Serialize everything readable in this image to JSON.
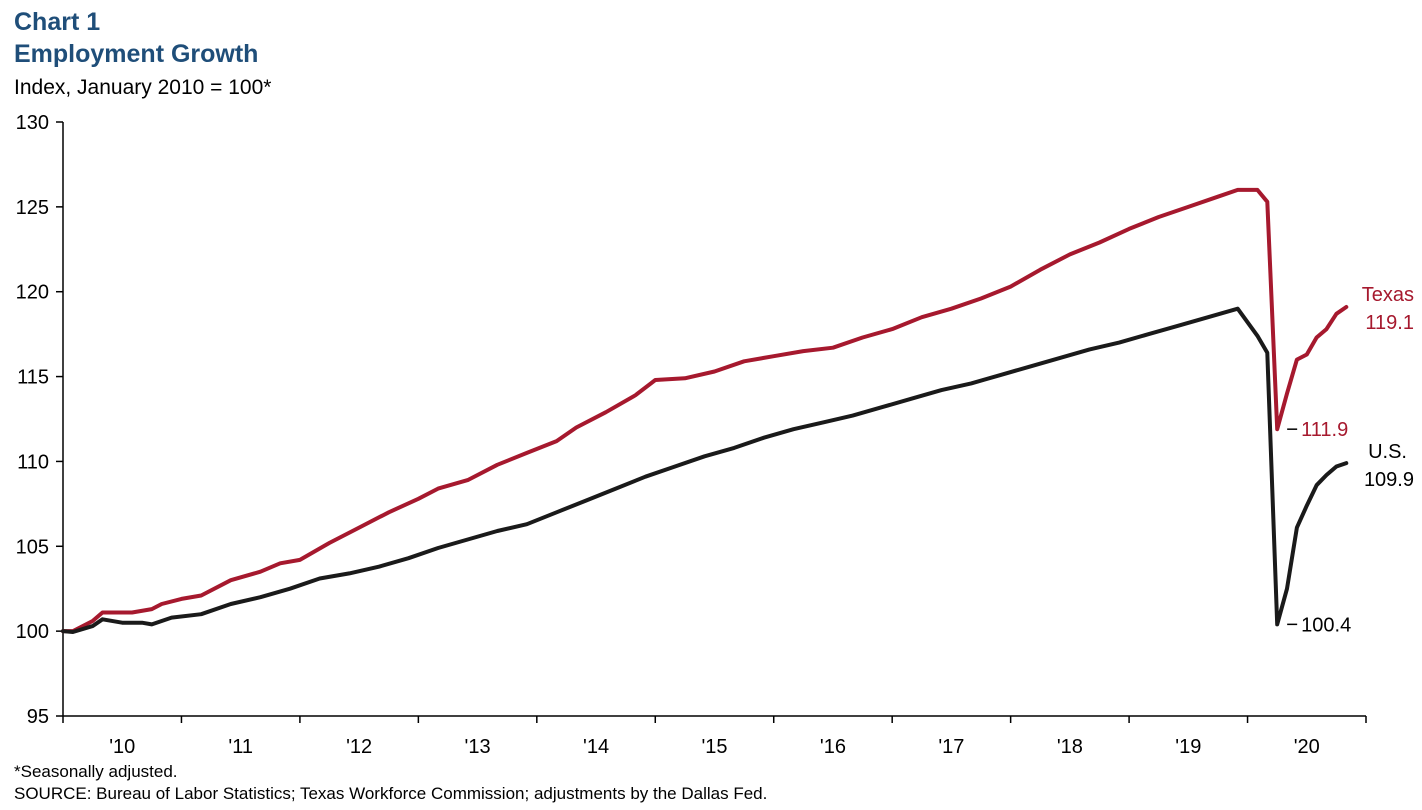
{
  "header": {
    "chart_label": "Chart 1",
    "title": "Employment Growth",
    "subtitle": "Index, January 2010 = 100*"
  },
  "footnotes": {
    "note": "*Seasonally adjusted.",
    "source": "SOURCE:  Bureau  of Labor Statistics; Texas Workforce Commission;  adjustments  by the Dallas Fed."
  },
  "colors": {
    "texas": "#a6192e",
    "us": "#1a1a1a",
    "title": "#1f4e79"
  },
  "chart_data": {
    "type": "line",
    "title": "Employment Growth",
    "subtitle": "Index, January 2010 = 100*",
    "ylim": [
      95,
      130
    ],
    "yticks": [
      95,
      100,
      105,
      110,
      115,
      120,
      125,
      130
    ],
    "xlim": [
      "2010-01",
      "2020-12"
    ],
    "xtick_labels": [
      "'10",
      "'11",
      "'12",
      "'13",
      "'14",
      "'15",
      "'16",
      "'17",
      "'18",
      "'19",
      "'20"
    ],
    "grid": false,
    "series": [
      {
        "name": "Texas",
        "color": "#a6192e",
        "end_value_label": "119.1",
        "points": [
          [
            "2010-01",
            100.0
          ],
          [
            "2010-02",
            100.0
          ],
          [
            "2010-04",
            100.6
          ],
          [
            "2010-05",
            101.1
          ],
          [
            "2010-08",
            101.1
          ],
          [
            "2010-10",
            101.3
          ],
          [
            "2010-11",
            101.6
          ],
          [
            "2011-01",
            101.9
          ],
          [
            "2011-03",
            102.1
          ],
          [
            "2011-06",
            103.0
          ],
          [
            "2011-09",
            103.5
          ],
          [
            "2011-11",
            104.0
          ],
          [
            "2012-01",
            104.2
          ],
          [
            "2012-04",
            105.2
          ],
          [
            "2012-07",
            106.1
          ],
          [
            "2012-10",
            107.0
          ],
          [
            "2013-01",
            107.8
          ],
          [
            "2013-03",
            108.4
          ],
          [
            "2013-06",
            108.9
          ],
          [
            "2013-09",
            109.8
          ],
          [
            "2013-12",
            110.5
          ],
          [
            "2014-03",
            111.2
          ],
          [
            "2014-05",
            112.0
          ],
          [
            "2014-08",
            112.9
          ],
          [
            "2014-11",
            113.9
          ],
          [
            "2015-01",
            114.8
          ],
          [
            "2015-04",
            114.9
          ],
          [
            "2015-07",
            115.3
          ],
          [
            "2015-10",
            115.9
          ],
          [
            "2016-01",
            116.2
          ],
          [
            "2016-04",
            116.5
          ],
          [
            "2016-07",
            116.7
          ],
          [
            "2016-10",
            117.3
          ],
          [
            "2017-01",
            117.8
          ],
          [
            "2017-04",
            118.5
          ],
          [
            "2017-07",
            119.0
          ],
          [
            "2017-10",
            119.6
          ],
          [
            "2018-01",
            120.3
          ],
          [
            "2018-04",
            121.3
          ],
          [
            "2018-07",
            122.2
          ],
          [
            "2018-10",
            122.9
          ],
          [
            "2019-01",
            123.7
          ],
          [
            "2019-04",
            124.4
          ],
          [
            "2019-07",
            125.0
          ],
          [
            "2019-10",
            125.6
          ],
          [
            "2019-12",
            126.0
          ],
          [
            "2020-02",
            126.0
          ],
          [
            "2020-03",
            125.3
          ],
          [
            "2020-04",
            111.9
          ],
          [
            "2020-05",
            114.0
          ],
          [
            "2020-06",
            116.0
          ],
          [
            "2020-07",
            116.3
          ],
          [
            "2020-08",
            117.3
          ],
          [
            "2020-09",
            117.8
          ],
          [
            "2020-10",
            118.7
          ],
          [
            "2020-11",
            119.1
          ]
        ]
      },
      {
        "name": "U.S.",
        "color": "#1a1a1a",
        "end_value_label": "109.9",
        "points": [
          [
            "2010-01",
            100.0
          ],
          [
            "2010-02",
            99.95
          ],
          [
            "2010-04",
            100.3
          ],
          [
            "2010-05",
            100.7
          ],
          [
            "2010-07",
            100.5
          ],
          [
            "2010-09",
            100.5
          ],
          [
            "2010-10",
            100.4
          ],
          [
            "2010-12",
            100.8
          ],
          [
            "2011-03",
            101.0
          ],
          [
            "2011-06",
            101.6
          ],
          [
            "2011-09",
            102.0
          ],
          [
            "2011-12",
            102.5
          ],
          [
            "2012-03",
            103.1
          ],
          [
            "2012-06",
            103.4
          ],
          [
            "2012-09",
            103.8
          ],
          [
            "2012-12",
            104.3
          ],
          [
            "2013-03",
            104.9
          ],
          [
            "2013-06",
            105.4
          ],
          [
            "2013-09",
            105.9
          ],
          [
            "2013-12",
            106.3
          ],
          [
            "2014-03",
            107.0
          ],
          [
            "2014-06",
            107.7
          ],
          [
            "2014-09",
            108.4
          ],
          [
            "2014-12",
            109.1
          ],
          [
            "2015-03",
            109.7
          ],
          [
            "2015-06",
            110.3
          ],
          [
            "2015-09",
            110.8
          ],
          [
            "2015-12",
            111.4
          ],
          [
            "2016-03",
            111.9
          ],
          [
            "2016-06",
            112.3
          ],
          [
            "2016-09",
            112.7
          ],
          [
            "2016-12",
            113.2
          ],
          [
            "2017-03",
            113.7
          ],
          [
            "2017-06",
            114.2
          ],
          [
            "2017-09",
            114.6
          ],
          [
            "2017-12",
            115.1
          ],
          [
            "2018-03",
            115.6
          ],
          [
            "2018-06",
            116.1
          ],
          [
            "2018-09",
            116.6
          ],
          [
            "2018-12",
            117.0
          ],
          [
            "2019-03",
            117.5
          ],
          [
            "2019-06",
            118.0
          ],
          [
            "2019-09",
            118.5
          ],
          [
            "2019-12",
            119.0
          ],
          [
            "2020-02",
            117.4
          ],
          [
            "2020-03",
            116.4
          ],
          [
            "2020-04",
            100.4
          ],
          [
            "2020-05",
            102.5
          ],
          [
            "2020-06",
            106.1
          ],
          [
            "2020-07",
            107.4
          ],
          [
            "2020-08",
            108.6
          ],
          [
            "2020-09",
            109.2
          ],
          [
            "2020-10",
            109.7
          ],
          [
            "2020-11",
            109.9
          ]
        ]
      }
    ],
    "annotations": [
      {
        "series": "Texas",
        "at": "2020-04",
        "value": 111.9,
        "text": "111.9"
      },
      {
        "series": "U.S.",
        "at": "2020-04",
        "value": 100.4,
        "text": "100.4"
      }
    ]
  }
}
